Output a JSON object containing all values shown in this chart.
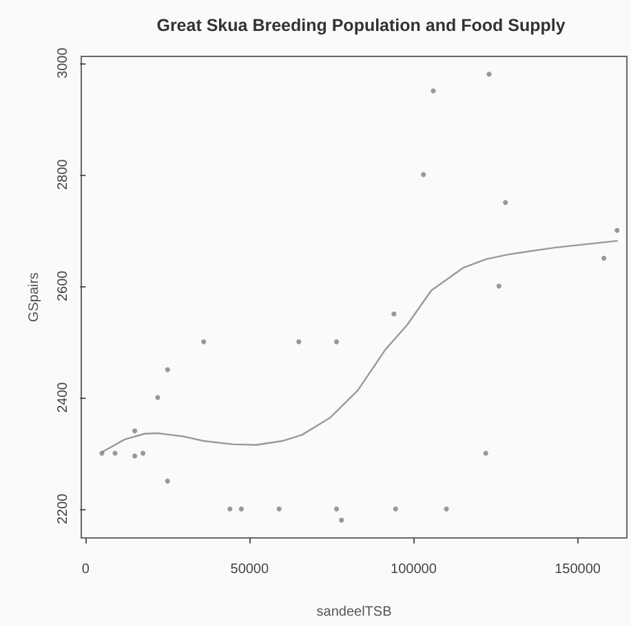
{
  "chart_data": {
    "type": "scatter",
    "title": "Great Skua Breeding Population and Food Supply",
    "xlabel": "sandeelTSB",
    "ylabel": "GSpairs",
    "xlim": [
      -1300,
      165000
    ],
    "ylim": [
      2148,
      3012
    ],
    "xticks": [
      0,
      50000,
      100000,
      150000
    ],
    "yticks": [
      2200,
      2400,
      2600,
      2800,
      3000
    ],
    "grid": false,
    "marker": "circle",
    "series": [
      {
        "color": "#7f7f7f",
        "x": [
          5000,
          9000,
          15000,
          15000,
          17500,
          22000,
          25000,
          25000,
          36000,
          44000,
          47500,
          59000,
          65000,
          76500,
          76500,
          78000,
          94000,
          94500,
          103000,
          106000,
          110000,
          122000,
          123000,
          126000,
          128000,
          158000,
          162000
        ],
        "values": [
          2300,
          2300,
          2340,
          2295,
          2300,
          2400,
          2450,
          2250,
          2500,
          2200,
          2200,
          2200,
          2500,
          2500,
          2200,
          2180,
          2550,
          2200,
          2800,
          2950,
          2200,
          2300,
          2980,
          2600,
          2750,
          2650,
          2700
        ]
      },
      {
        "type": "line",
        "color": "#999999",
        "marker": "none",
        "line_style": "solid",
        "x": [
          5000,
          12000,
          18000,
          22000,
          30000,
          36000,
          45000,
          52000,
          60000,
          66000,
          74600,
          83000,
          91400,
          98000,
          105400,
          115200,
          122000,
          129200,
          143200,
          162000
        ],
        "values": [
          2302,
          2325,
          2335,
          2336,
          2330,
          2322,
          2316,
          2315,
          2322,
          2333,
          2364,
          2413,
          2486,
          2530,
          2592,
          2633,
          2648,
          2657,
          2669,
          2681
        ]
      }
    ]
  }
}
